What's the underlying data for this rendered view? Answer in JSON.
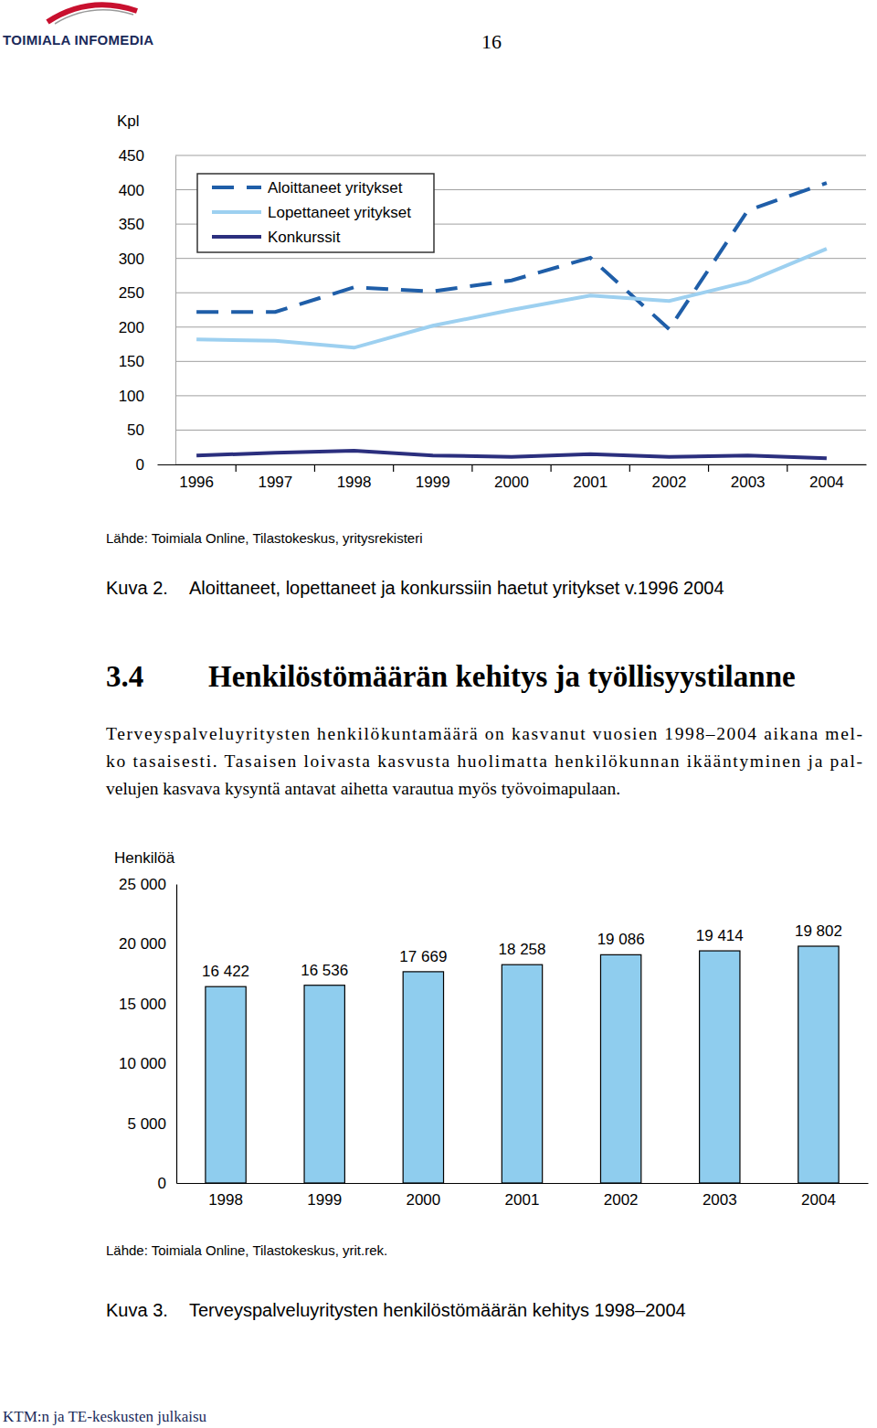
{
  "header": {
    "logo": "TOIMIALA INFOMEDIA",
    "page": "16"
  },
  "chart_data": [
    {
      "type": "line",
      "figure": "Kuva 2.",
      "title": "Aloittaneet, lopettaneet ja konkurssiin haetut yritykset v.1996 2004",
      "source": "Lähde: Toimiala Online, Tilastokeskus, yritysrekisteri",
      "y_label": "Kpl",
      "categories": [
        "1996",
        "1997",
        "1998",
        "1999",
        "2000",
        "2001",
        "2002",
        "2003",
        "2004"
      ],
      "series": [
        {
          "name": "Aloittaneet yritykset",
          "color": "#1f5ea8",
          "line_style": "dashed",
          "values": [
            222,
            222,
            258,
            252,
            268,
            301,
            197,
            370,
            410
          ]
        },
        {
          "name": "Lopettaneet yritykset",
          "color": "#9dd0f0",
          "line_style": "solid",
          "values": [
            182,
            180,
            170,
            202,
            225,
            246,
            238,
            266,
            314
          ]
        },
        {
          "name": "Konkurssit",
          "color": "#2b2f7e",
          "line_style": "solid",
          "values": [
            13,
            17,
            20,
            13,
            11,
            15,
            11,
            13,
            9
          ]
        }
      ],
      "ylim": [
        0,
        450
      ],
      "yticks": [
        0,
        50,
        100,
        150,
        200,
        250,
        300,
        350,
        400,
        450
      ],
      "grid": true,
      "legend": "upper left"
    },
    {
      "type": "bar",
      "figure": "Kuva 3.",
      "title": "Terveyspalveluyritysten henkilöstömäärän kehitys 1998–2004",
      "source": "Lähde: Toimiala Online, Tilastokeskus, yrit.rek.",
      "y_label": "Henkilöä",
      "categories": [
        "1998",
        "1999",
        "2000",
        "2001",
        "2002",
        "2003",
        "2004"
      ],
      "values": [
        16422,
        16536,
        17669,
        18258,
        19086,
        19414,
        19802
      ],
      "value_labels": [
        "16 422",
        "16 536",
        "17 669",
        "18 258",
        "19 086",
        "19 414",
        "19 802"
      ],
      "data_labels": true,
      "color": "#8fcdee",
      "ylim": [
        0,
        25000
      ],
      "yticks": [
        0,
        {
          "value": 5000,
          "label": "5 000"
        },
        {
          "value": 10000,
          "label": "10 000"
        },
        {
          "value": 15000,
          "label": "15 000"
        },
        {
          "value": 20000,
          "label": "20 000"
        },
        {
          "value": 25000,
          "label": "25 000"
        }
      ],
      "grid": false
    }
  ],
  "section": {
    "number": "3.4",
    "title": "Henkilöstömäärän kehitys ja työllisyystilanne",
    "paragraph": [
      "Terveyspalveluyritysten henkilökuntamäärä on kasvanut vuosien 1998–2004 aikana mel-",
      "ko tasaisesti. Tasaisen loivasta kasvusta huolimatta henkilökunnan ikääntyminen ja pal-",
      "velujen kasvava kysyntä antavat aihetta varautua myös työvoimapulaan."
    ]
  },
  "footer": "KTM:n ja TE-keskusten julkaisu"
}
